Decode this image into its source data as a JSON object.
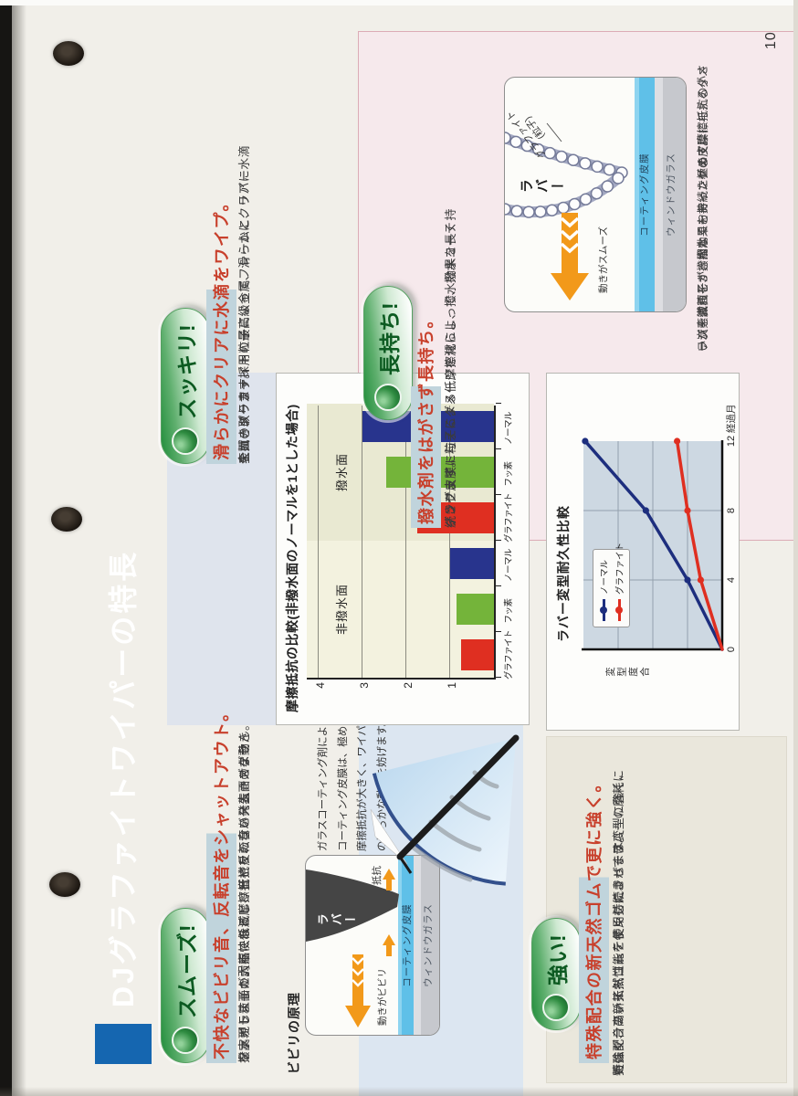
{
  "page": {
    "number": "10"
  },
  "banner": {
    "title": "DJグラファイトワイパーの特長"
  },
  "sections": {
    "smooth": {
      "badge": "スムーズ!",
      "heading": "不快なビビリ音、反転音をシャットアウト。",
      "body": [
        "撥水ガラス面の弱点である摩擦抵抗を、ラバー表面のグラ",
        "ファイト粒子が大幅に低減し、ビビリのないスムーズな動き",
        "を実現しました。不快なビビリ音や反転音を発生させません。"
      ],
      "diagram": {
        "label": "ビビリの原理",
        "callout": [
          "ガラスコーティング剤による",
          "コーティング皮膜は、極めて",
          "摩擦抵抗が大きく、ワイパー",
          "の滑らかな動きを妨げます。"
        ],
        "rubber": "ラバー",
        "resistance": "抵抗",
        "motion": "動きがビビリ",
        "coating": "コーティング皮膜",
        "glass": "ウィンドウガラス"
      }
    },
    "clear": {
      "badge": "スッキリ!",
      "heading": "滑らかにクリアに水滴をワイプ。",
      "body": [
        "全カーメーカー採用の最高級金属フレームと、ラバー",
        "表面のグラファイト粒子によって、滑らかにクリアに水滴",
        "を拭き取ります。"
      ]
    },
    "longlast": {
      "badge": "長持ち!",
      "heading": "撥水剤をはがさず長持ち。",
      "body": [
        "グラファイト粒子による低摩擦化によって、撥水コーテ",
        "ィング皮膜に与えるダメージを減らし、撥水効果を長く持",
        "続させます。"
      ],
      "diagram": {
        "particle_line1": "グラファイト",
        "particle_line2": "(粒子)",
        "rubber": "ラバー",
        "motion": "動きがスムーズ",
        "coating": "コーティング皮膜",
        "glass": "ウィンドウガラス"
      },
      "caption": [
        "ラバー表面をすき間なくおおった極めて摩擦抵抗の小さ",
        "い炭素微粒子が、撥水コーティングの皮膜に与えるダメ",
        "ージを減らし、撥水効果を持続させます。"
      ]
    },
    "strong": {
      "badge": "強い!",
      "heading": "特殊配合の新天然ゴムで更に強く。",
      "body": [
        "特殊配合の新天然ゴムを使用したラバーは変型に強く、",
        "更にグラファイトコーティングによってラバーの磨耗に",
        "も強く、高い払拭性能を長く持続させます。"
      ]
    }
  },
  "ui_colors": {
    "banner_blue": "#7b93c0",
    "banner_dark_blue": "#1566b0",
    "accent_red": "#c8402c",
    "badge_green": "#0c5a21",
    "heading_highlight": "#c0d4dc",
    "arrow_orange": "#f2991a",
    "coating_blue": "#5fc0e8"
  },
  "chart_data": [
    {
      "type": "bar",
      "title": "摩擦抵抗の比較(非撥水面のノーマルを1とした場合)",
      "groups": [
        "非撥水面",
        "撥水面"
      ],
      "categories": [
        "グラファイト",
        "フッ素",
        "ノーマル",
        "グラファイト",
        "フッ素",
        "ノーマル"
      ],
      "values": [
        0.75,
        0.85,
        1.0,
        1.75,
        2.45,
        3.0
      ],
      "colors": [
        "#df2f21",
        "#74b43a",
        "#28348d",
        "#df2f21",
        "#74b43a",
        "#28348d"
      ],
      "ylim": [
        0,
        4.3
      ],
      "yticks": [
        1,
        2,
        3,
        4
      ],
      "grid": true,
      "plot_bg_left": "#f3f2df",
      "plot_bg_right": "#e9e9d2"
    },
    {
      "type": "line",
      "title": "ラバー変型耐久性比較",
      "xlabel": "経過月",
      "ylabel": "変型度合",
      "x": [
        0,
        4,
        8,
        12
      ],
      "xticks": [
        "0",
        "4",
        "8",
        "12"
      ],
      "ylim": [
        0,
        4
      ],
      "grid": true,
      "plot_bg": "#cdd8e2",
      "legend_position": "upper-left",
      "series": [
        {
          "name": "ノーマル",
          "color": "#1d2e7e",
          "values": [
            0,
            1.0,
            2.2,
            3.95
          ]
        },
        {
          "name": "グラファイト",
          "color": "#df2f21",
          "values": [
            0,
            0.62,
            1.0,
            1.3
          ]
        }
      ]
    }
  ]
}
